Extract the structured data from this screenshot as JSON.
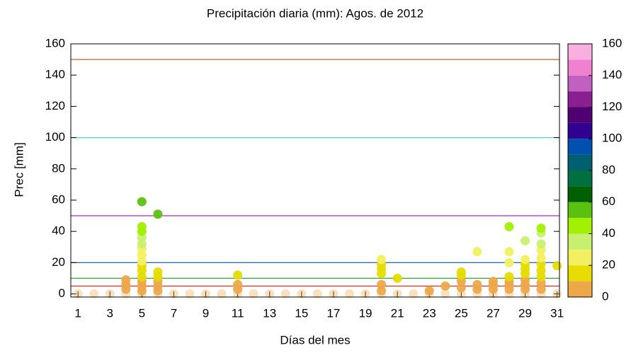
{
  "chart_data": {
    "type": "scatter",
    "title": "Precipitación diaria (mm):   Agos.  de  2012",
    "x_label": "Días del mes",
    "y_label": "Prec [mm]",
    "x": [
      1,
      2,
      3,
      4,
      5,
      6,
      7,
      8,
      9,
      10,
      11,
      12,
      13,
      14,
      15,
      16,
      17,
      18,
      19,
      20,
      21,
      22,
      23,
      24,
      25,
      26,
      27,
      28,
      29,
      30,
      31,
      4,
      4,
      4,
      5,
      5,
      5,
      5,
      5,
      5,
      5,
      5,
      5,
      5,
      5,
      5,
      5,
      5,
      6,
      6,
      6,
      6,
      6,
      6,
      11,
      11,
      11,
      20,
      20,
      20,
      20,
      20,
      20,
      21,
      23,
      24,
      25,
      25,
      25,
      25,
      26,
      26,
      26,
      27,
      27,
      27,
      28,
      28,
      28,
      28,
      28,
      28,
      28,
      29,
      29,
      29,
      29,
      29,
      29,
      29,
      29,
      30,
      30,
      30,
      30,
      30,
      30,
      30,
      30,
      30,
      30,
      31
    ],
    "values": [
      0,
      0,
      0,
      0,
      0,
      0,
      0,
      0,
      0,
      0,
      0,
      0,
      0,
      0,
      0,
      0,
      0,
      0,
      0,
      0,
      0,
      0,
      0,
      0,
      0,
      0,
      0,
      0,
      0,
      0,
      0,
      3,
      6,
      9,
      2,
      5,
      8,
      11,
      15,
      18,
      21,
      25,
      29,
      32,
      36,
      40,
      43,
      59,
      2,
      5,
      8,
      11,
      14,
      51,
      3,
      6,
      12,
      2,
      6,
      13,
      16,
      19,
      22,
      10,
      2,
      5,
      4,
      8,
      12,
      14,
      3,
      6,
      27,
      3,
      6,
      8,
      3,
      6,
      8,
      11,
      20,
      27,
      43,
      3,
      6,
      9,
      13,
      16,
      19,
      22,
      34,
      3,
      7,
      11,
      15,
      19,
      23,
      28,
      32,
      39,
      42,
      18
    ],
    "xlim": [
      0.55,
      31.15
    ],
    "xticks": [
      1,
      3,
      5,
      7,
      9,
      11,
      13,
      15,
      17,
      19,
      21,
      23,
      25,
      27,
      29,
      31
    ],
    "ylim": [
      -2,
      160
    ],
    "yticks": [
      0,
      20,
      40,
      60,
      80,
      100,
      120,
      140,
      160
    ],
    "reference_lines": [
      {
        "value": 150,
        "color": "#c8641e"
      },
      {
        "value": 100,
        "color": "#40e0e8"
      },
      {
        "value": 50,
        "color": "#b040c8"
      },
      {
        "value": 20,
        "color": "#2060c0"
      },
      {
        "value": 10,
        "color": "#30a030"
      },
      {
        "value": 5,
        "color": "#e03020"
      }
    ],
    "colorbar": {
      "lim": [
        0,
        160
      ],
      "ticks": [
        0,
        20,
        40,
        60,
        80,
        100,
        120,
        140,
        160
      ],
      "step": 10,
      "colors": [
        "#eda84a",
        "#e6dc00",
        "#f2f060",
        "#c8f070",
        "#a0f000",
        "#5cc010",
        "#006000",
        "#007040",
        "#006070",
        "#0050b0",
        "#300090",
        "#500070",
        "#8a2090",
        "#c060c0",
        "#f080d0",
        "#f8b0e0"
      ]
    }
  }
}
